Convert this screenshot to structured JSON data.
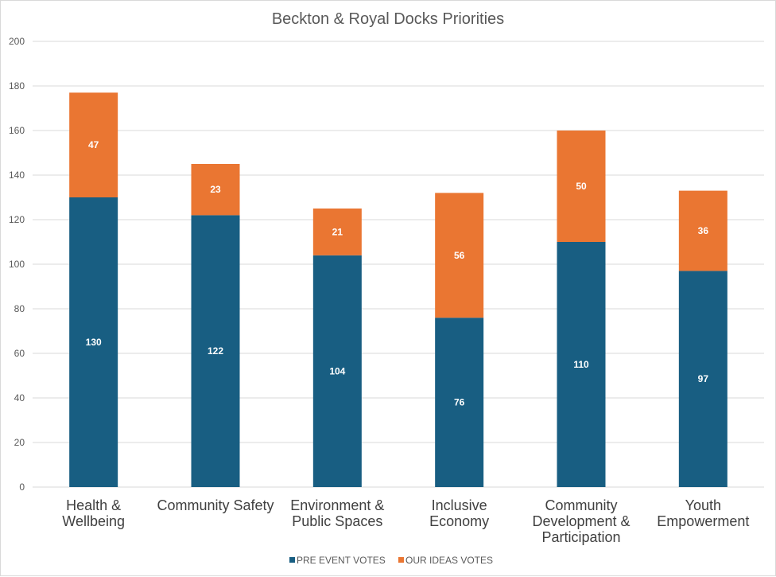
{
  "chart_data": {
    "type": "bar",
    "stacked": true,
    "title": "Beckton & Royal Docks Priorities",
    "categories": [
      [
        "Health &",
        "Wellbeing"
      ],
      [
        "Community Safety"
      ],
      [
        "Environment &",
        "Public Spaces"
      ],
      [
        "Inclusive",
        "Economy"
      ],
      [
        "Community",
        "Development &",
        "Participation"
      ],
      [
        "Youth",
        "Empowerment"
      ]
    ],
    "series": [
      {
        "name": "PRE EVENT VOTES",
        "color": "#185e82",
        "values": [
          130,
          122,
          104,
          76,
          110,
          97
        ]
      },
      {
        "name": "OUR IDEAS VOTES",
        "color": "#ea7632",
        "values": [
          47,
          23,
          21,
          56,
          50,
          36
        ]
      }
    ],
    "ylim": [
      0,
      200
    ],
    "yticks": [
      0,
      20,
      40,
      60,
      80,
      100,
      120,
      140,
      160,
      180,
      200
    ],
    "grid": true,
    "legend_position": "bottom",
    "xlabel": "",
    "ylabel": ""
  }
}
